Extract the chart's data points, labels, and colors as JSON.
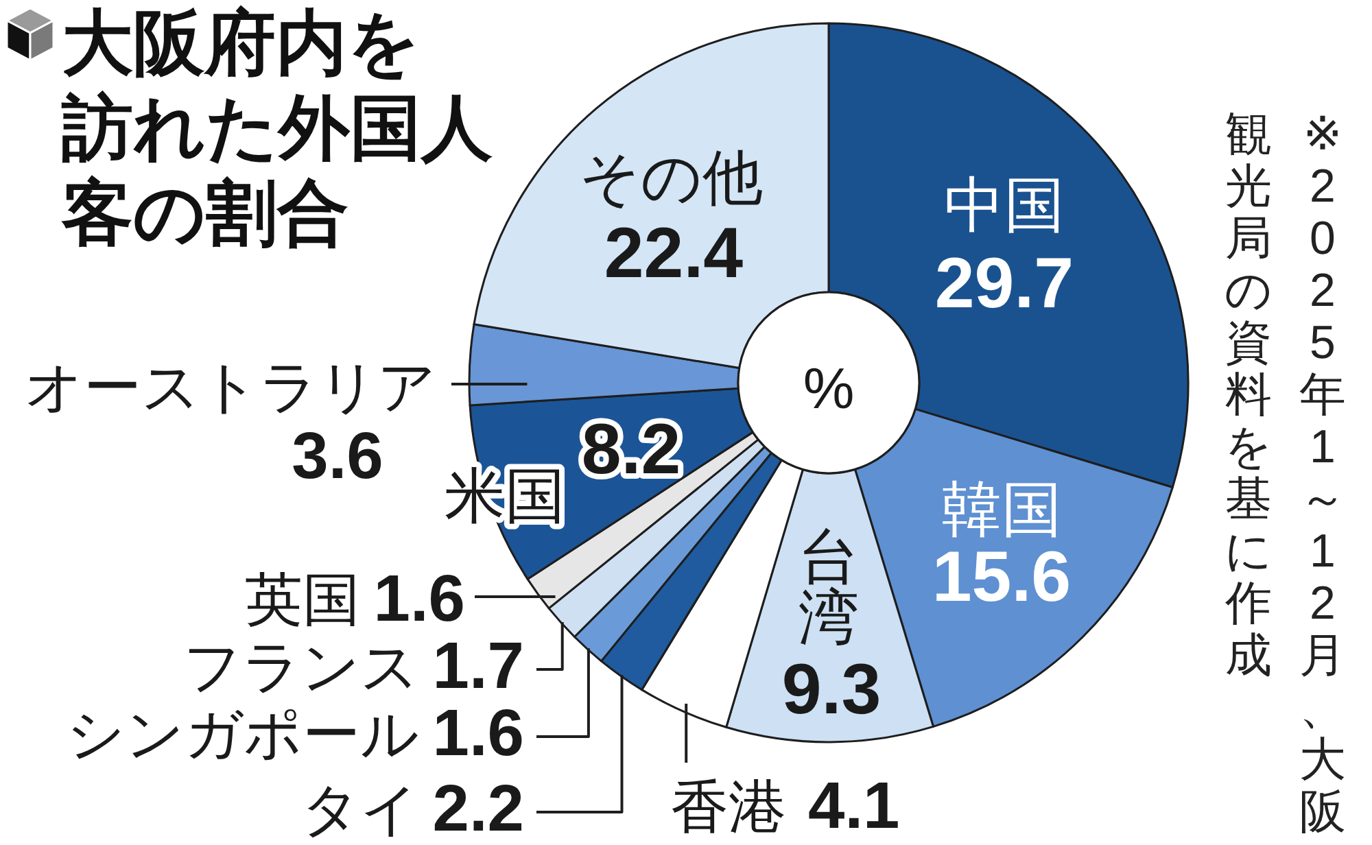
{
  "chart_data": {
    "type": "donut",
    "title": "大阪府内を訪れた外国人客の割合",
    "categories": [
      "中国",
      "韓国",
      "台湾",
      "香港",
      "タイ",
      "シンガポール",
      "フランス",
      "英国",
      "米国",
      "オーストラリア",
      "その他"
    ],
    "values": [
      29.7,
      15.6,
      9.3,
      4.1,
      2.2,
      1.6,
      1.7,
      1.6,
      8.2,
      3.6,
      22.4
    ],
    "colors": [
      "#1a5290",
      "#5e90d2",
      "#cde0f4",
      "#ffffff",
      "#1f5b9e",
      "#6a9bd8",
      "#cfe0f3",
      "#e6e6e6",
      "#1b5597",
      "#6896d6",
      "#d4e5f6"
    ],
    "data_labels": true,
    "annotations": [
      "%",
      "※2025年1～12月、大阪観光局の資料を基に作成"
    ]
  }
}
